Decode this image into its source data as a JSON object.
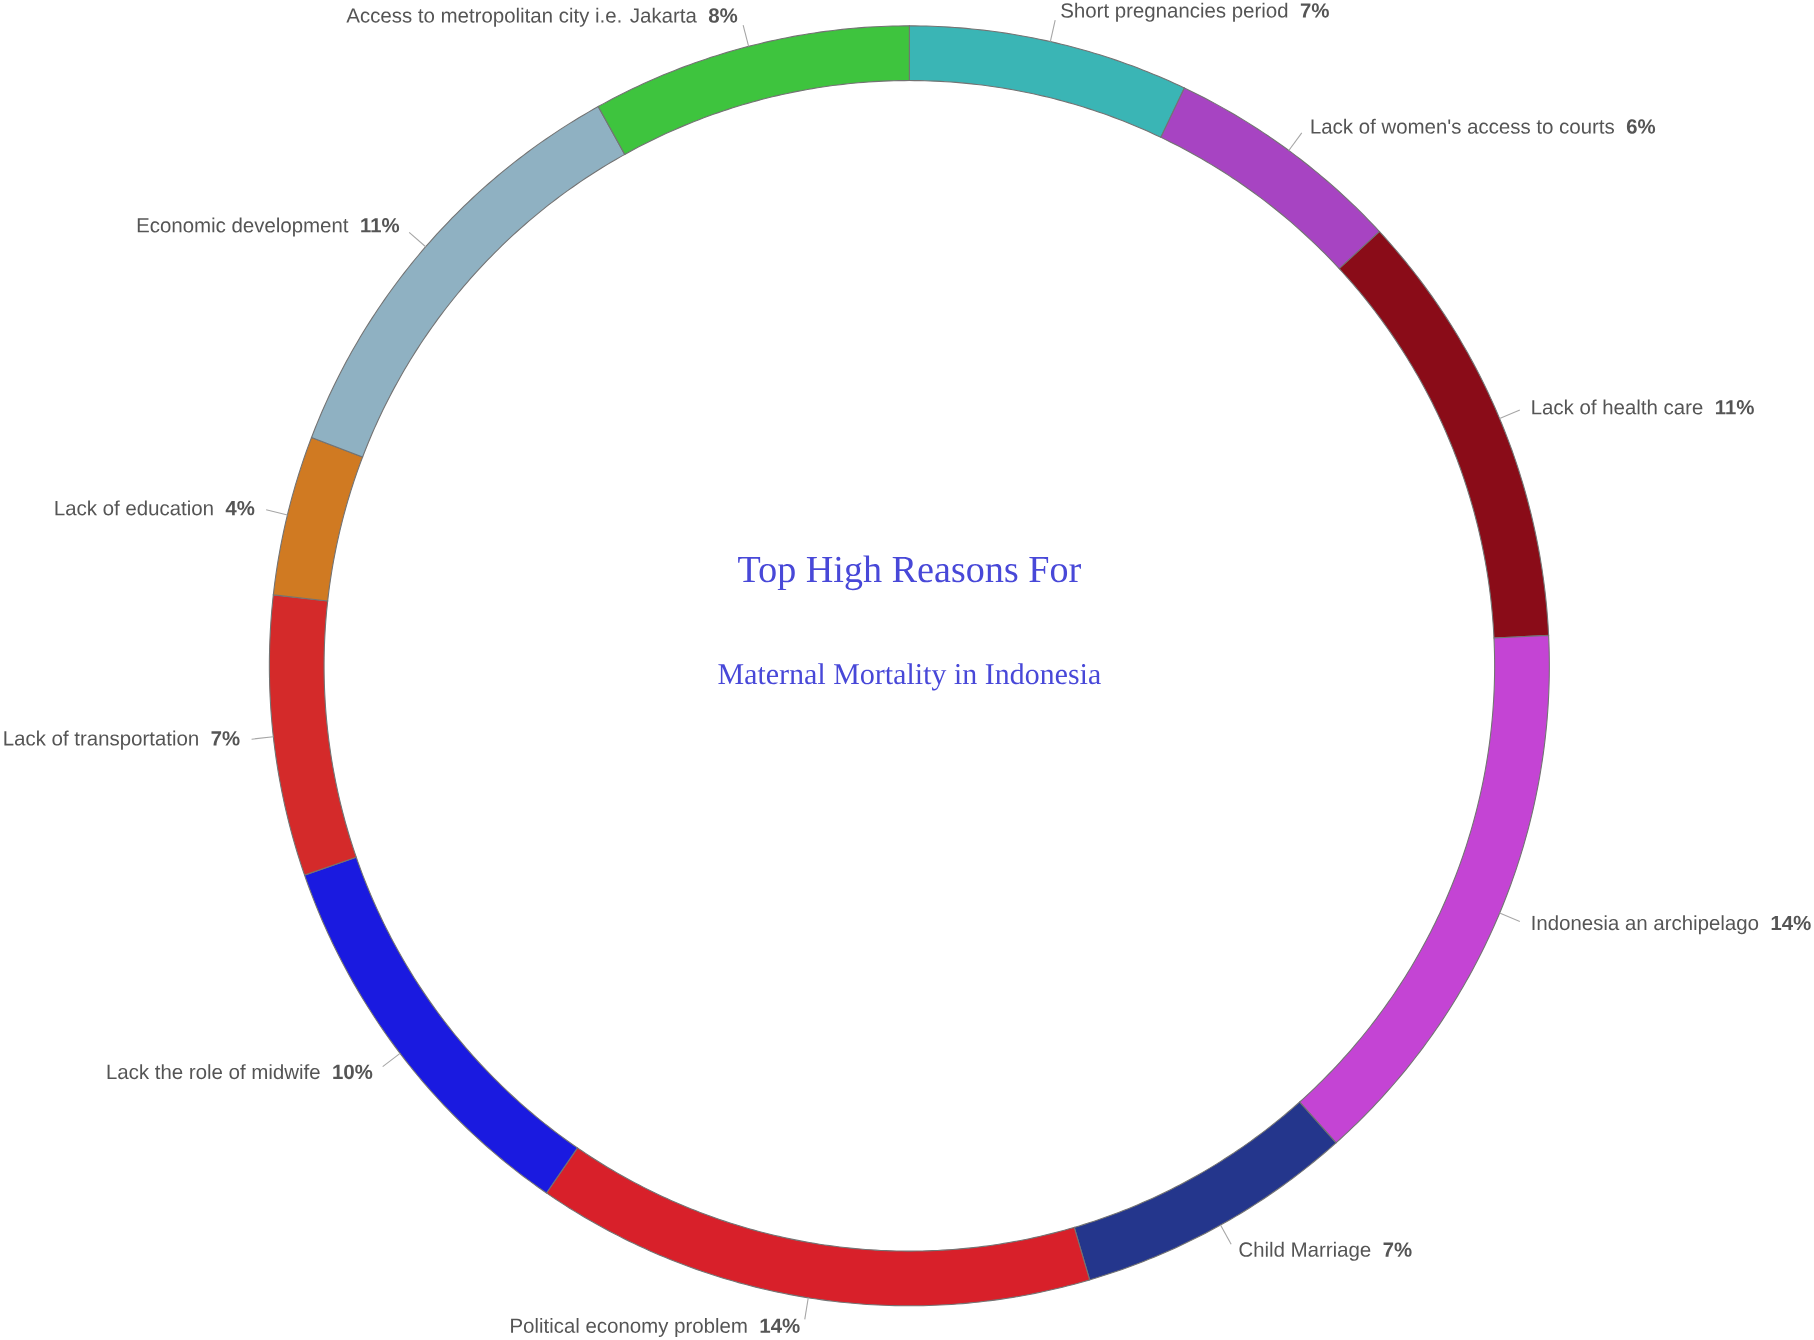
{
  "chart_data": {
    "type": "donut",
    "title": "Top High Reasons For",
    "subtitle": "Maternal Mortality in Indonesia",
    "categories": [
      "Short pregnancies period",
      "Lack of women's access to courts",
      "Lack of health care",
      "Indonesia an archipelago",
      "Child Marriage",
      "Political economy problem",
      "Lack the role of midwife",
      "Lack of transportation",
      "Lack of education",
      "Economic development",
      "Access to metropolitan city i.e. Jakarta"
    ],
    "values": [
      7,
      6,
      11,
      14,
      7,
      14,
      10,
      7,
      4,
      11,
      8
    ],
    "colors": [
      "#3ab5b5",
      "#a744c2",
      "#8a0c18",
      "#c444d4",
      "#24368c",
      "#d8202a",
      "#1a1ae0",
      "#d42a2a",
      "#d07a22",
      "#8fb1c2",
      "#3ec43e"
    ],
    "value_labels": [
      "7%",
      "6%",
      "11%",
      "14%",
      "7%",
      "14%",
      "10%",
      "7%",
      "4%",
      "11%",
      "8%"
    ]
  }
}
